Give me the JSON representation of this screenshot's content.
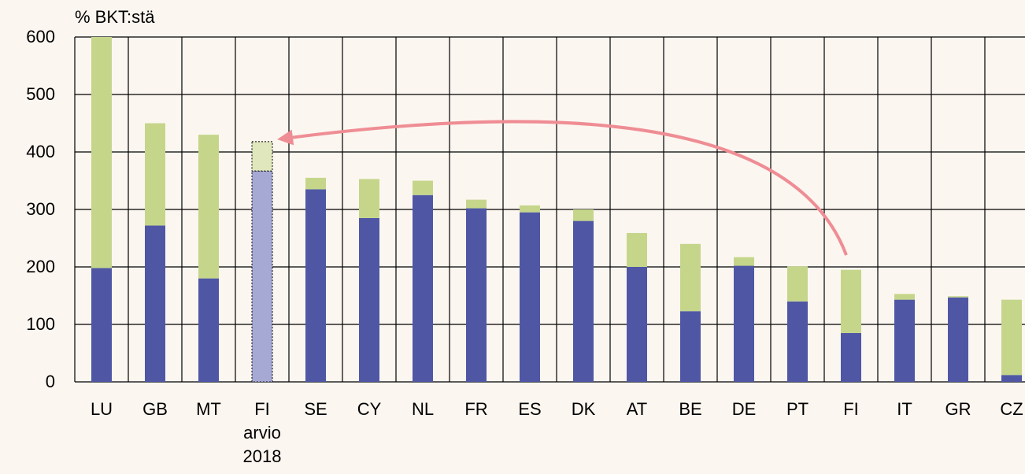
{
  "chart_data": {
    "type": "stacked_bar",
    "y_label": "% BKT:stä",
    "categories": [
      "LU",
      "GB",
      "MT",
      "FI\narvio\n2018",
      "SE",
      "CY",
      "NL",
      "FR",
      "ES",
      "DK",
      "AT",
      "BE",
      "DE",
      "PT",
      "FI",
      "IT",
      "GR",
      "CZ"
    ],
    "series": [
      {
        "color": "#4f57a5",
        "colors": [
          "#4f57a5",
          "#4f57a5",
          "#4f57a5",
          "#a6a9d4",
          "#4f57a5",
          "#4f57a5",
          "#4f57a5",
          "#4f57a5",
          "#4f57a5",
          "#4f57a5",
          "#4f57a5",
          "#4f57a5",
          "#4f57a5",
          "#4f57a5",
          "#4f57a5",
          "#4f57a5",
          "#4f57a5",
          "#4f57a5"
        ],
        "values": [
          198,
          272,
          180,
          367,
          335,
          285,
          325,
          302,
          295,
          280,
          200,
          123,
          202,
          140,
          85,
          143,
          147,
          12
        ]
      },
      {
        "color": "#c5d68b",
        "colors": [
          "#c5d68b",
          "#c5d68b",
          "#c5d68b",
          "#e0e7bd",
          "#c5d68b",
          "#c5d68b",
          "#c5d68b",
          "#c5d68b",
          "#c5d68b",
          "#c5d68b",
          "#c5d68b",
          "#c5d68b",
          "#c5d68b",
          "#c5d68b",
          "#c5d68b",
          "#c5d68b",
          "#c5d68b",
          "#c5d68b"
        ],
        "values": [
          402,
          178,
          250,
          51,
          20,
          68,
          25,
          15,
          12,
          20,
          59,
          117,
          15,
          61,
          110,
          10,
          2,
          131
        ]
      }
    ],
    "ylim": [
      0,
      600
    ],
    "yticks": [
      0,
      100,
      200,
      300,
      400,
      500,
      600
    ],
    "grid": true
  }
}
